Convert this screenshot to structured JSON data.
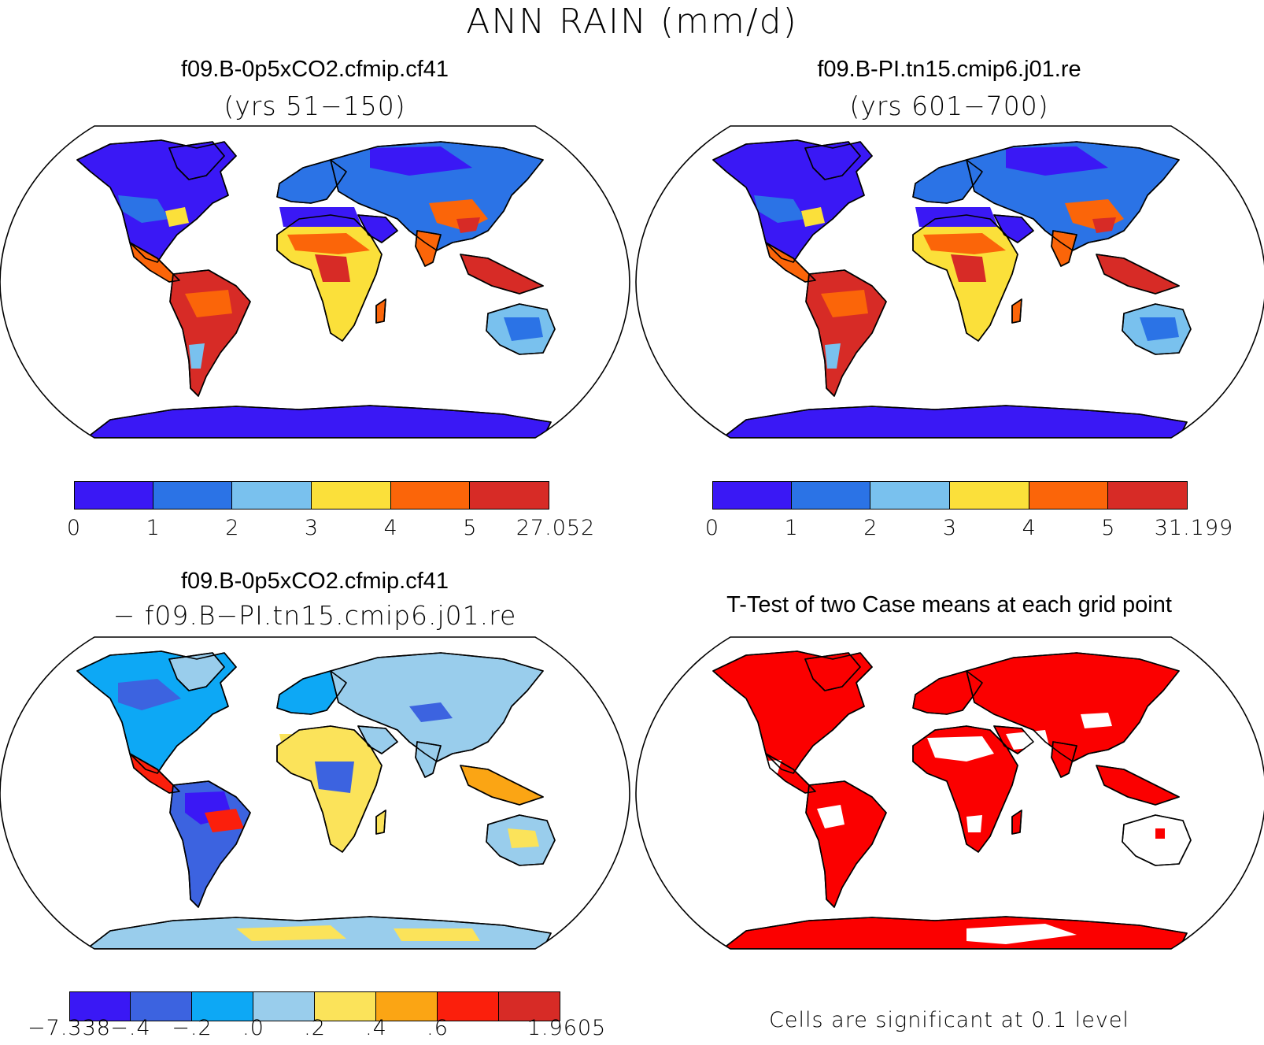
{
  "figure": {
    "title": "ANN RAIN (mm/d)"
  },
  "panels": {
    "top_left": {
      "title": "f09.B-0p5xCO2.cfmip.cf41",
      "subtitle": "(yrs 51−150)",
      "colorbar": {
        "labels": [
          "0",
          "1",
          "2",
          "3",
          "4",
          "5",
          "27.052"
        ],
        "colors": [
          "#3a18f5",
          "#2b73e6",
          "#79c1ee",
          "#fbe03a",
          "#fb6509",
          "#d72b26"
        ]
      }
    },
    "top_right": {
      "title": "f09.B-PI.tn15.cmip6.j01.re",
      "subtitle": "(yrs 601−700)",
      "colorbar": {
        "labels": [
          "0",
          "1",
          "2",
          "3",
          "4",
          "5",
          "31.199"
        ],
        "colors": [
          "#3a18f5",
          "#2b73e6",
          "#79c1ee",
          "#fbe03a",
          "#fb6509",
          "#d72b26"
        ]
      }
    },
    "bottom_left": {
      "title": "f09.B-0p5xCO2.cfmip.cf41",
      "subtitle": "− f09.B−PI.tn15.cmip6.j01.re",
      "colorbar": {
        "labels": [
          "−7.338",
          "−.4",
          "−.2",
          ".0",
          ".2",
          ".4",
          ".6",
          "1.9605"
        ],
        "colors": [
          "#3a18f5",
          "#3c63e0",
          "#0da8f5",
          "#99cdec",
          "#fbe35a",
          "#fba514",
          "#fb1f0c",
          "#d72b26"
        ]
      }
    },
    "bottom_right": {
      "title": "T-Test of two Case means at each grid point",
      "footnote": "Cells are significant at 0.1 level",
      "significant_color": "#fb0000"
    }
  },
  "map": {
    "projection": "Robinson",
    "coastline_color": "#000000",
    "ocean_color": "#ffffff"
  }
}
